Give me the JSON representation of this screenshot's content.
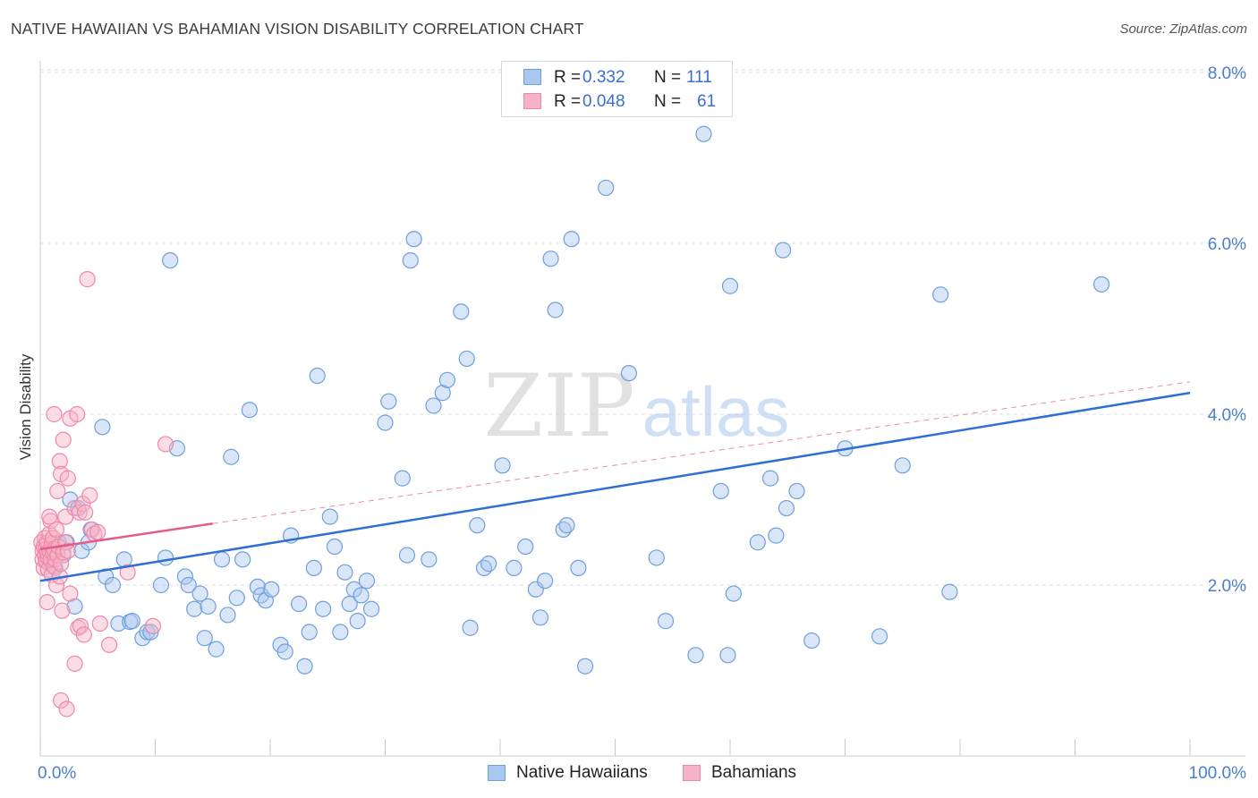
{
  "title": "NATIVE HAWAIIAN VS BAHAMIAN VISION DISABILITY CORRELATION CHART",
  "source": "Source: ZipAtlas.com",
  "watermark": {
    "zip": "ZIP",
    "atlas": "atlas"
  },
  "colors": {
    "blue_fill": "#a9c8ef",
    "blue_stroke": "#6f9fdc",
    "blue_line": "#2f6fd2",
    "pink_fill": "#f6b3c8",
    "pink_stroke": "#ee88a8",
    "pink_line": "#e45c8a",
    "grid": "#dddddd",
    "tick_text": "#4a7fcf"
  },
  "legend": {
    "rows": [
      {
        "r_label": "R =",
        "r_value": "0.332",
        "n_label": "N =",
        "n_value": "111",
        "series": "blue"
      },
      {
        "r_label": "R =",
        "r_value": "0.048",
        "n_label": "N =",
        "n_value": "61",
        "series": "pink"
      }
    ]
  },
  "bottom_legend": [
    {
      "label": "Native Hawaiians",
      "series": "blue"
    },
    {
      "label": "Bahamians",
      "series": "pink"
    }
  ],
  "chart_data": {
    "type": "scatter",
    "title": "NATIVE HAWAIIAN VS BAHAMIAN VISION DISABILITY CORRELATION CHART",
    "xlabel": "",
    "ylabel": "Vision Disability",
    "xlim": [
      0,
      100
    ],
    "ylim": [
      0,
      8.2
    ],
    "x_tick_labels": [
      {
        "value": 0,
        "label": "0.0%"
      },
      {
        "value": 100,
        "label": "100.0%"
      }
    ],
    "y_ticks": [
      {
        "value": 2,
        "label": "2.0%"
      },
      {
        "value": 4,
        "label": "4.0%"
      },
      {
        "value": 6,
        "label": "6.0%"
      },
      {
        "value": 8,
        "label": "8.0%"
      }
    ],
    "grid": true,
    "series": [
      {
        "name": "Native Hawaiians",
        "color": "blue",
        "trendline": {
          "x": [
            0,
            100
          ],
          "y": [
            2.05,
            4.25
          ],
          "style": "solid"
        },
        "points": [
          [
            0.5,
            2.3
          ],
          [
            0.8,
            2.25
          ],
          [
            1.0,
            2.4
          ],
          [
            1.3,
            2.2
          ],
          [
            1.6,
            2.5
          ],
          [
            2.0,
            2.35
          ],
          [
            2.3,
            2.5
          ],
          [
            2.6,
            3.0
          ],
          [
            3.0,
            1.75
          ],
          [
            3.3,
            2.9
          ],
          [
            3.6,
            2.4
          ],
          [
            4.2,
            2.5
          ],
          [
            4.4,
            2.65
          ],
          [
            5.4,
            3.85
          ],
          [
            5.7,
            2.1
          ],
          [
            6.3,
            2.0
          ],
          [
            6.8,
            1.55
          ],
          [
            7.3,
            2.3
          ],
          [
            7.8,
            1.57
          ],
          [
            8.0,
            1.58
          ],
          [
            8.9,
            1.38
          ],
          [
            9.3,
            1.45
          ],
          [
            9.6,
            1.45
          ],
          [
            10.5,
            2.0
          ],
          [
            10.9,
            2.32
          ],
          [
            11.3,
            5.8
          ],
          [
            11.9,
            3.6
          ],
          [
            12.6,
            2.1
          ],
          [
            12.9,
            2.0
          ],
          [
            13.4,
            1.72
          ],
          [
            13.9,
            1.9
          ],
          [
            14.3,
            1.38
          ],
          [
            14.6,
            1.75
          ],
          [
            15.3,
            1.25
          ],
          [
            15.8,
            2.3
          ],
          [
            16.3,
            1.65
          ],
          [
            16.6,
            3.5
          ],
          [
            17.1,
            1.85
          ],
          [
            17.6,
            2.3
          ],
          [
            18.2,
            4.05
          ],
          [
            18.9,
            1.98
          ],
          [
            19.2,
            1.88
          ],
          [
            19.6,
            1.82
          ],
          [
            20.1,
            1.95
          ],
          [
            20.9,
            1.3
          ],
          [
            21.3,
            1.22
          ],
          [
            21.8,
            2.58
          ],
          [
            22.5,
            1.78
          ],
          [
            23.0,
            1.05
          ],
          [
            23.4,
            1.45
          ],
          [
            23.8,
            2.2
          ],
          [
            24.1,
            4.45
          ],
          [
            24.6,
            1.72
          ],
          [
            25.2,
            2.8
          ],
          [
            25.6,
            2.45
          ],
          [
            26.1,
            1.45
          ],
          [
            26.5,
            2.15
          ],
          [
            26.9,
            1.78
          ],
          [
            27.3,
            1.95
          ],
          [
            27.6,
            1.58
          ],
          [
            27.9,
            1.88
          ],
          [
            28.4,
            2.05
          ],
          [
            28.8,
            1.72
          ],
          [
            30.0,
            3.9
          ],
          [
            30.3,
            4.15
          ],
          [
            31.5,
            3.25
          ],
          [
            31.9,
            2.35
          ],
          [
            32.2,
            5.8
          ],
          [
            32.5,
            6.05
          ],
          [
            33.8,
            2.3
          ],
          [
            34.2,
            4.1
          ],
          [
            35.0,
            4.25
          ],
          [
            35.4,
            4.4
          ],
          [
            36.6,
            5.2
          ],
          [
            37.1,
            4.65
          ],
          [
            37.4,
            1.5
          ],
          [
            38.0,
            2.7
          ],
          [
            38.6,
            2.2
          ],
          [
            39.0,
            2.25
          ],
          [
            40.2,
            3.4
          ],
          [
            41.2,
            2.2
          ],
          [
            42.2,
            2.45
          ],
          [
            43.1,
            1.95
          ],
          [
            43.5,
            1.62
          ],
          [
            43.9,
            2.05
          ],
          [
            44.4,
            5.82
          ],
          [
            44.8,
            5.22
          ],
          [
            45.5,
            2.65
          ],
          [
            45.8,
            2.7
          ],
          [
            46.2,
            6.05
          ],
          [
            46.8,
            2.2
          ],
          [
            47.4,
            1.05
          ],
          [
            49.2,
            6.65
          ],
          [
            51.2,
            4.48
          ],
          [
            53.6,
            2.32
          ],
          [
            54.4,
            1.58
          ],
          [
            57.0,
            1.18
          ],
          [
            57.7,
            7.28
          ],
          [
            59.2,
            3.1
          ],
          [
            59.8,
            1.18
          ],
          [
            60.0,
            5.5
          ],
          [
            60.3,
            1.9
          ],
          [
            62.4,
            2.5
          ],
          [
            63.5,
            3.25
          ],
          [
            64.0,
            2.58
          ],
          [
            64.6,
            5.92
          ],
          [
            64.9,
            2.9
          ],
          [
            65.8,
            3.1
          ],
          [
            67.1,
            1.35
          ],
          [
            70.0,
            3.6
          ],
          [
            73.0,
            1.4
          ],
          [
            75.0,
            3.4
          ],
          [
            78.3,
            5.4
          ],
          [
            79.1,
            1.92
          ],
          [
            92.3,
            5.52
          ]
        ]
      },
      {
        "name": "Bahamians",
        "color": "pink",
        "trendline": {
          "x": [
            0,
            15
          ],
          "y": [
            2.42,
            2.72
          ],
          "style": "solid",
          "dashed_extension": {
            "x": [
              15,
              100
            ],
            "y": [
              2.72,
              4.38
            ]
          }
        },
        "points": [
          [
            0.1,
            2.5
          ],
          [
            0.2,
            2.3
          ],
          [
            0.2,
            2.4
          ],
          [
            0.3,
            2.2
          ],
          [
            0.3,
            2.45
          ],
          [
            0.4,
            2.35
          ],
          [
            0.4,
            2.55
          ],
          [
            0.5,
            2.42
          ],
          [
            0.5,
            2.28
          ],
          [
            0.6,
            2.38
          ],
          [
            0.6,
            2.5
          ],
          [
            0.7,
            2.18
          ],
          [
            0.7,
            2.32
          ],
          [
            0.8,
            2.4
          ],
          [
            0.8,
            2.6
          ],
          [
            0.9,
            2.3
          ],
          [
            0.9,
            2.75
          ],
          [
            1.0,
            2.48
          ],
          [
            1.0,
            2.12
          ],
          [
            1.1,
            2.38
          ],
          [
            1.1,
            2.55
          ],
          [
            1.2,
            2.22
          ],
          [
            1.2,
            2.42
          ],
          [
            1.3,
            2.3
          ],
          [
            1.4,
            2.0
          ],
          [
            1.4,
            2.65
          ],
          [
            1.5,
            2.35
          ],
          [
            1.6,
            2.45
          ],
          [
            1.7,
            2.1
          ],
          [
            1.8,
            2.25
          ],
          [
            2.0,
            2.38
          ],
          [
            2.2,
            2.5
          ],
          [
            2.4,
            2.4
          ],
          [
            0.6,
            1.8
          ],
          [
            0.8,
            2.8
          ],
          [
            1.2,
            4.0
          ],
          [
            1.5,
            3.1
          ],
          [
            1.7,
            3.45
          ],
          [
            1.8,
            3.3
          ],
          [
            2.0,
            3.7
          ],
          [
            2.2,
            2.8
          ],
          [
            2.4,
            3.25
          ],
          [
            2.6,
            3.95
          ],
          [
            3.0,
            2.9
          ],
          [
            3.2,
            4.0
          ],
          [
            3.4,
            2.85
          ],
          [
            3.7,
            2.95
          ],
          [
            3.9,
            2.85
          ],
          [
            4.3,
            3.05
          ],
          [
            4.5,
            2.65
          ],
          [
            4.7,
            2.6
          ],
          [
            5.0,
            2.62
          ],
          [
            1.9,
            1.7
          ],
          [
            2.6,
            1.9
          ],
          [
            3.0,
            1.08
          ],
          [
            3.3,
            1.5
          ],
          [
            3.5,
            1.52
          ],
          [
            3.8,
            1.42
          ],
          [
            4.1,
            5.58
          ],
          [
            1.8,
            0.65
          ],
          [
            2.3,
            0.55
          ],
          [
            7.6,
            2.15
          ],
          [
            9.8,
            1.52
          ],
          [
            10.9,
            3.65
          ],
          [
            6.0,
            1.3
          ],
          [
            5.2,
            1.55
          ]
        ]
      }
    ]
  }
}
